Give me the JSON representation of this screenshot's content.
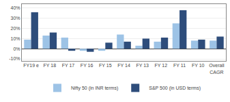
{
  "chart_data": {
    "type": "bar",
    "categories": [
      "FY19 e",
      "FY 18",
      "FY 17",
      "FY 16",
      "FY 15",
      "FY 14",
      "FY 13",
      "FY 12",
      "FY 11",
      "FY 10",
      "Overall\nCAGR"
    ],
    "series": [
      {
        "name": "Nifty 50 (in INR terms)",
        "color": "#9dc3e6",
        "values": [
          9,
          13,
          11,
          -2,
          -2,
          14,
          3,
          7,
          25,
          8,
          8
        ]
      },
      {
        "name": "S&P 500 (in USD terms)",
        "color": "#2e4d7b",
        "values": [
          36,
          16,
          -2,
          -3,
          6,
          7,
          10,
          11,
          38,
          9,
          12
        ]
      }
    ],
    "ylim": [
      -12,
      44
    ],
    "yticks": [
      {
        "value": -10,
        "label": "-10%"
      },
      {
        "value": 0,
        "label": "0%"
      },
      {
        "value": 10,
        "label": "10%"
      },
      {
        "value": 20,
        "label": "20%"
      },
      {
        "value": 30,
        "label": "30%"
      },
      {
        "value": 40,
        "label": "40%"
      }
    ],
    "grid": true,
    "legend": "bottom"
  }
}
